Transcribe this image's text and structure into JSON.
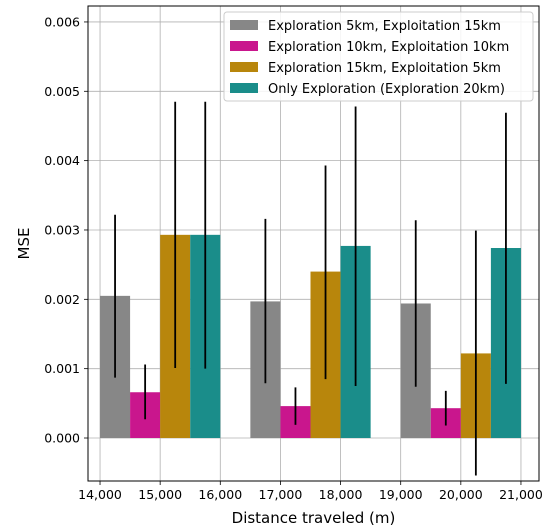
{
  "chart_data": {
    "type": "bar",
    "title": "",
    "xlabel": "Distance traveled (m)",
    "ylabel": "MSE",
    "xlim": [
      13800,
      21300
    ],
    "ylim": [
      -0.00062,
      0.00623
    ],
    "xticks": [
      14000,
      15000,
      16000,
      17000,
      18000,
      19000,
      20000,
      21000
    ],
    "xtick_labels": [
      "14,000",
      "15,000",
      "16,000",
      "17,000",
      "18,000",
      "19,000",
      "20,000",
      "21,000"
    ],
    "yticks": [
      0.0,
      0.001,
      0.002,
      0.003,
      0.004,
      0.005,
      0.006
    ],
    "ytick_labels": [
      "0.000",
      "0.001",
      "0.002",
      "0.003",
      "0.004",
      "0.005",
      "0.006"
    ],
    "grid": true,
    "legend_position": "top-right",
    "bar_width": 500,
    "series": [
      {
        "name": "Exploration 5km, Exploitation 15km",
        "color": "#878787",
        "x": [
          14250,
          16750,
          19250
        ],
        "values": [
          0.00205,
          0.00197,
          0.00194
        ],
        "err_low": [
          0.00087,
          0.00079,
          0.00074
        ],
        "err_high": [
          0.00322,
          0.00316,
          0.00314
        ]
      },
      {
        "name": "Exploration 10km, Exploitation 10km",
        "color": "#c9168d",
        "x": [
          14750,
          17250,
          19750
        ],
        "values": [
          0.00066,
          0.00046,
          0.00043
        ],
        "err_low": [
          0.00027,
          0.00019,
          0.00018
        ],
        "err_high": [
          0.00106,
          0.00073,
          0.00068
        ]
      },
      {
        "name": "Exploration 15km, Exploitation 5km",
        "color": "#b8860c",
        "x": [
          15250,
          17750,
          20250
        ],
        "values": [
          0.00293,
          0.0024,
          0.00122
        ],
        "err_low": [
          0.00101,
          0.00085,
          -0.00054
        ],
        "err_high": [
          0.00485,
          0.00393,
          0.00299
        ]
      },
      {
        "name": "Only Exploration (Exploration 20km)",
        "color": "#1a8d8a",
        "x": [
          15750,
          18250,
          20750
        ],
        "values": [
          0.00293,
          0.00277,
          0.00274
        ],
        "err_low": [
          0.001,
          0.00075,
          0.00078
        ],
        "err_high": [
          0.00485,
          0.00478,
          0.00469
        ]
      }
    ]
  }
}
